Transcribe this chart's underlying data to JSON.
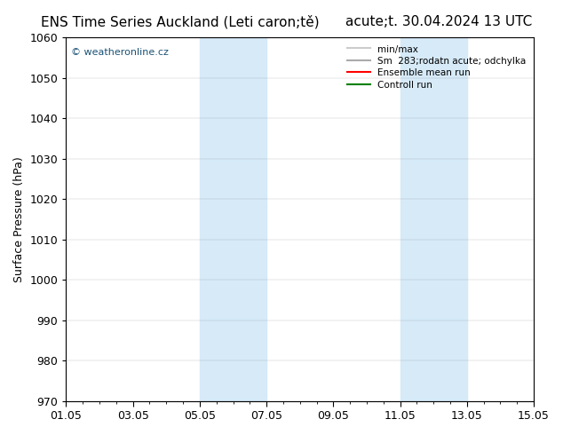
{
  "title_left": "ENS Time Series Auckland (Leti caron;tě)",
  "title_right": "acute;t. 30.04.2024 13 UTC",
  "xlabel_ticks": [
    "01.05",
    "03.05",
    "05.05",
    "07.05",
    "09.05",
    "11.05",
    "13.05",
    "15.05"
  ],
  "xlabel_tick_positions": [
    0,
    2,
    4,
    6,
    8,
    10,
    12,
    14
  ],
  "ylabel": "Surface Pressure (hPa)",
  "ylim": [
    970,
    1060
  ],
  "yticks": [
    970,
    980,
    990,
    1000,
    1010,
    1020,
    1030,
    1040,
    1050,
    1060
  ],
  "shaded_regions": [
    {
      "xmin": 4.0,
      "xmax": 6.0,
      "color": "#d6eaf8"
    },
    {
      "xmin": 10.0,
      "xmax": 12.0,
      "color": "#d6eaf8"
    }
  ],
  "legend_entries": [
    {
      "label": "min/max",
      "color": "#cccccc",
      "type": "line"
    },
    {
      "label": "Sm  283;rodatn acute; odchylka",
      "color": "#aaaaaa",
      "type": "line"
    },
    {
      "label": "Ensemble mean run",
      "color": "#ff0000",
      "type": "line"
    },
    {
      "label": "Controll run",
      "color": "#008000",
      "type": "line"
    }
  ],
  "watermark_text": "© weatheronline.cz",
  "watermark_color": "#1a5276",
  "background_color": "#ffffff",
  "plot_bg_color": "#ffffff",
  "grid_color": "#888888",
  "title_fontsize": 11,
  "tick_fontsize": 9,
  "ylabel_fontsize": 9,
  "x_total_days": 14
}
